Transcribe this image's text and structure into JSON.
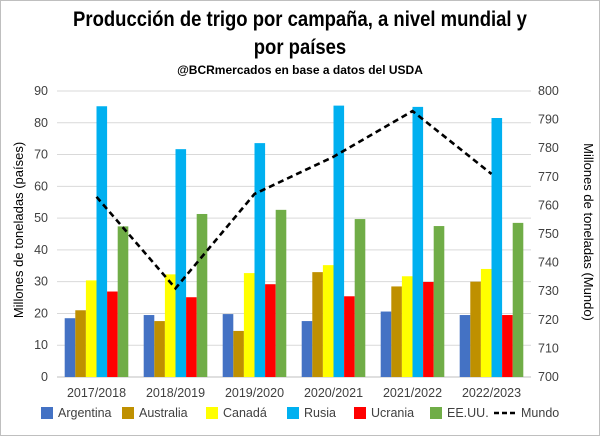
{
  "chart_data": {
    "type": "bar",
    "title": "Producción de trigo por campaña, a nivel mundial y por países",
    "title_line1": "Producción de trigo por campaña, a nivel mundial y",
    "title_line2": "por países",
    "subtitle": "@BCRmercados  en base a datos del USDA",
    "xlabel": "",
    "ylabel": "Millones de toneladas (países)",
    "y2label": "Millones de toneladas (Mundo)",
    "ylim": [
      0,
      90
    ],
    "y2lim": [
      700,
      800
    ],
    "yticks": [
      0,
      10,
      20,
      30,
      40,
      50,
      60,
      70,
      80,
      90
    ],
    "y2ticks": [
      700,
      710,
      720,
      730,
      740,
      750,
      760,
      770,
      780,
      790,
      800
    ],
    "grid": true,
    "legend_position": "bottom",
    "categories": [
      "2017/2018",
      "2018/2019",
      "2019/2020",
      "2020/2021",
      "2021/2022",
      "2022/2023"
    ],
    "series": [
      {
        "name": "Argentina",
        "color": "#4472c4",
        "values": [
          18.5,
          19.5,
          19.8,
          17.6,
          20.6,
          19.5
        ]
      },
      {
        "name": "Australia",
        "color": "#bf9000",
        "values": [
          21.0,
          17.6,
          14.5,
          33.0,
          28.5,
          30.0
        ]
      },
      {
        "name": "Canadá",
        "color": "#ffff00",
        "values": [
          30.4,
          32.3,
          32.7,
          35.2,
          31.7,
          34.0
        ]
      },
      {
        "name": "Rusia",
        "color": "#00b0f0",
        "values": [
          85.2,
          71.7,
          73.6,
          85.4,
          85.0,
          81.5
        ]
      },
      {
        "name": "Ucrania",
        "color": "#ff0000",
        "values": [
          26.9,
          25.1,
          29.2,
          25.4,
          29.9,
          19.5
        ]
      },
      {
        "name": "EE.UU.",
        "color": "#70ad47",
        "values": [
          47.4,
          51.3,
          52.6,
          49.7,
          47.5,
          48.5
        ]
      }
    ],
    "line_series": [
      {
        "name": "Mundo",
        "axis": "right",
        "color": "#000000",
        "style": "dashed",
        "values": [
          763,
          731,
          764,
          777,
          793,
          771
        ]
      }
    ]
  }
}
